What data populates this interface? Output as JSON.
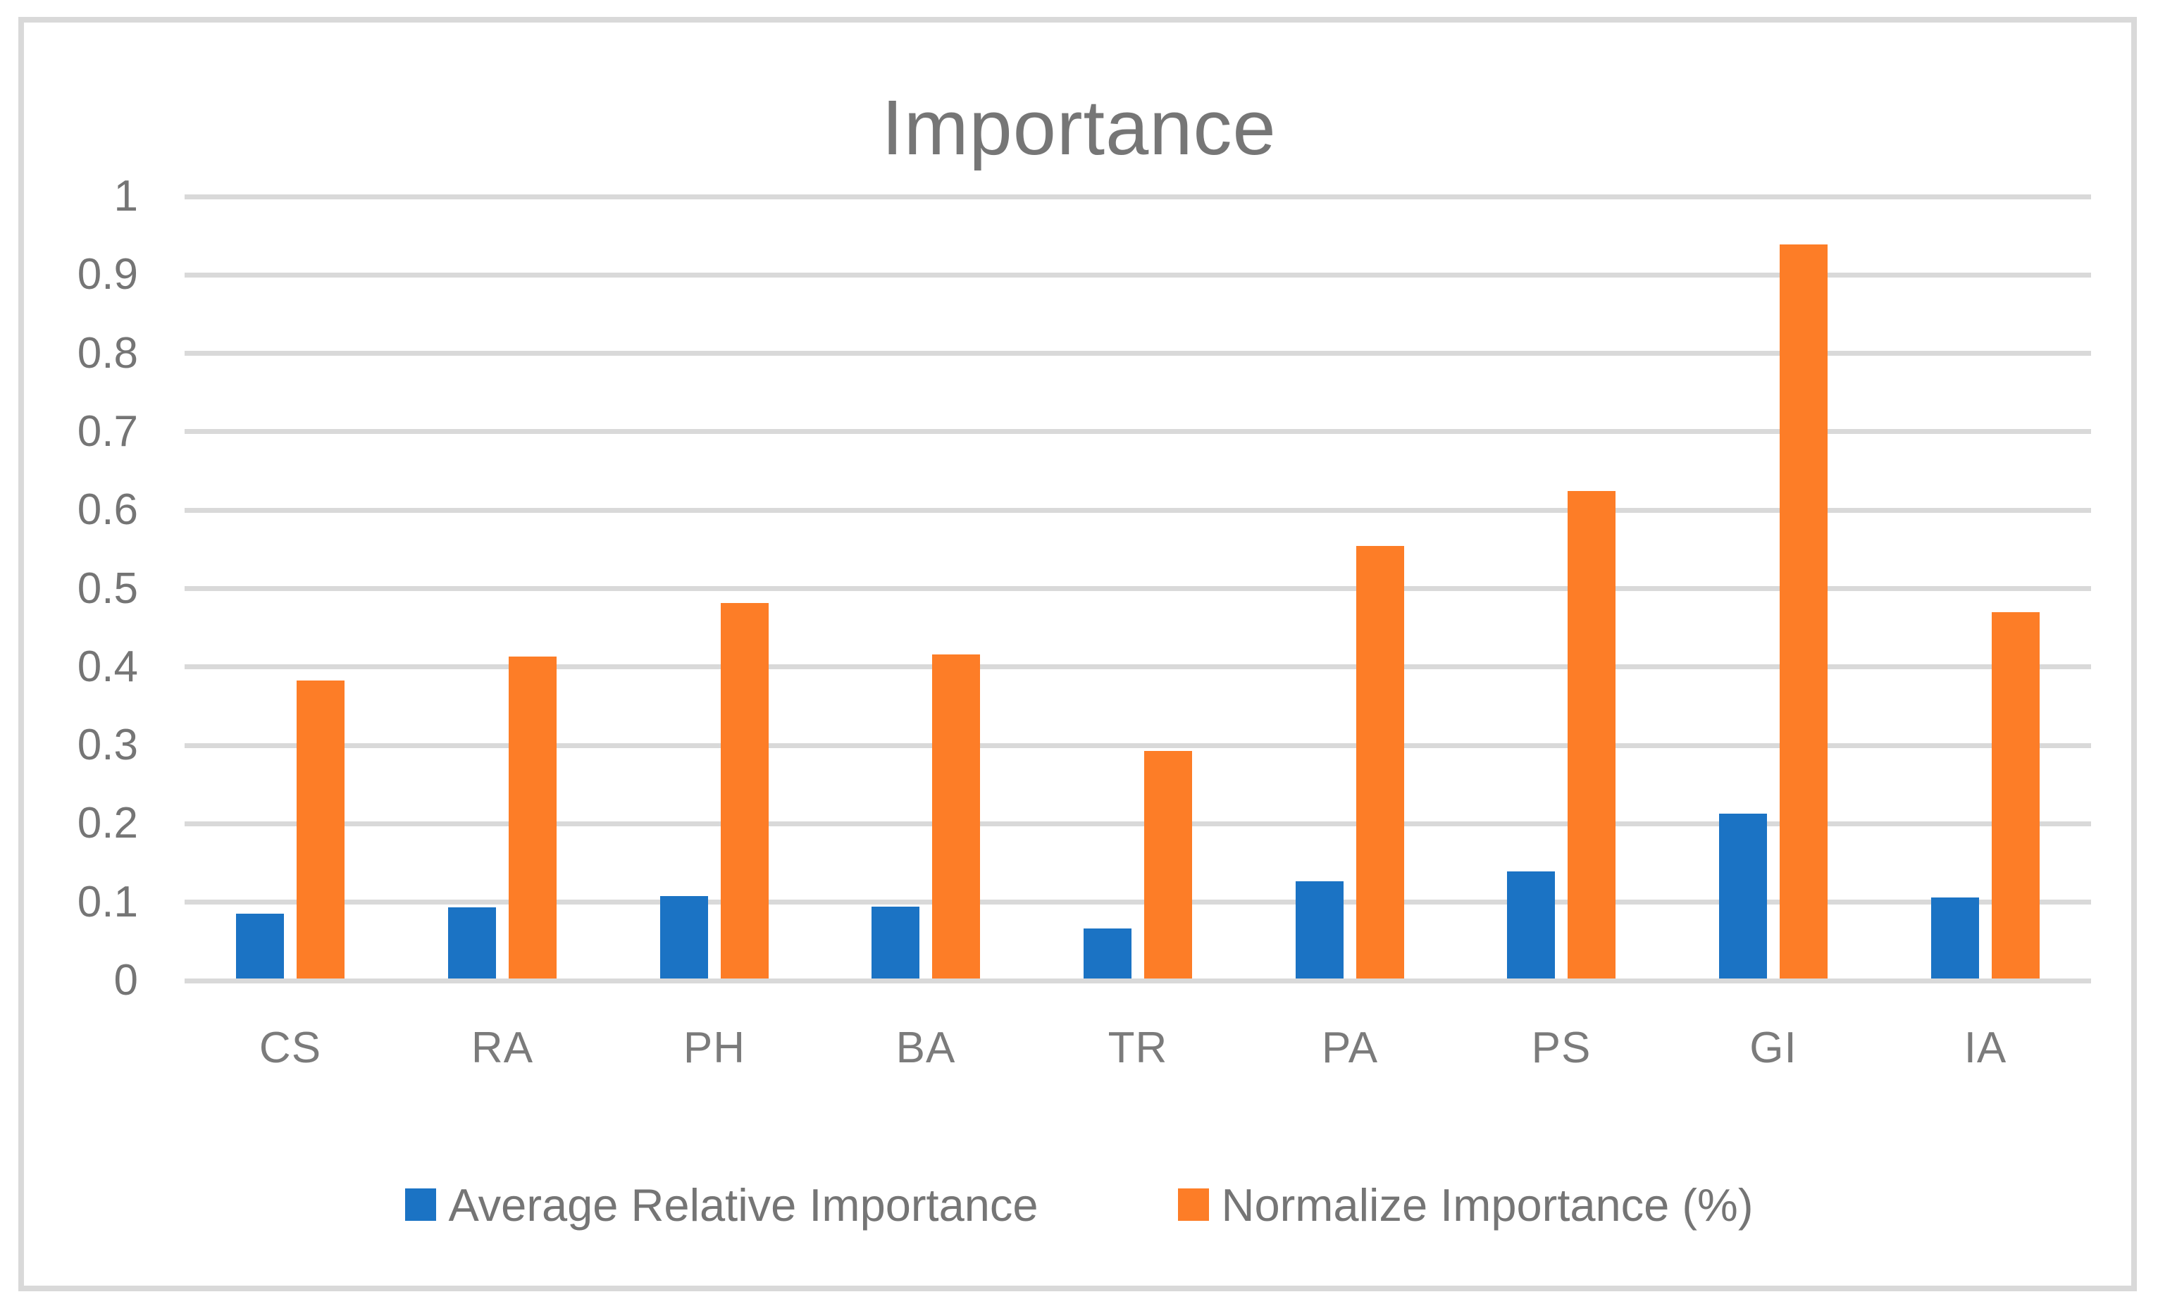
{
  "figure": {
    "background": "#FFFFFF",
    "border_color": "#D9D9D9"
  },
  "chart_data": {
    "type": "bar",
    "title": "Importance",
    "title_color": "#767676",
    "categories": [
      "CS",
      "RA",
      "PH",
      "BA",
      "TR",
      "PA",
      "PS",
      "GI",
      "IA"
    ],
    "series": [
      {
        "name": "Average Relative Importance",
        "color": "#1B73C4",
        "values": [
          0.083,
          0.091,
          0.105,
          0.092,
          0.064,
          0.124,
          0.137,
          0.21,
          0.103
        ]
      },
      {
        "name": "Normalize Importance (%)",
        "color": "#FD7D27",
        "values": [
          0.38,
          0.411,
          0.479,
          0.413,
          0.29,
          0.552,
          0.622,
          0.936,
          0.467
        ]
      }
    ],
    "xlabel": "",
    "ylabel": "",
    "ylim": [
      0,
      1
    ],
    "ytick_labels": [
      "0",
      "0.1",
      "0.2",
      "0.3",
      "0.4",
      "0.5",
      "0.6",
      "0.7",
      "0.8",
      "0.9",
      "1"
    ],
    "grid": true,
    "gridline_color": "#D9D9D9",
    "axis_label_color": "#757575",
    "legend_position": "bottom"
  }
}
